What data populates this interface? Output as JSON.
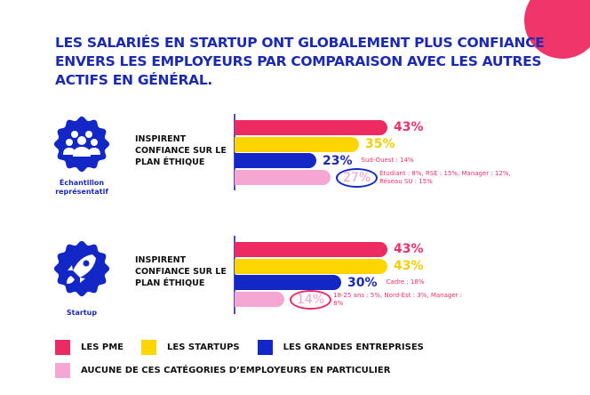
{
  "title": "LES SALARIÉS EN STARTUP ONT GLOBALEMENT PLUS CONFIANCE ENVERS LES EMPLOYEURS PAR COMPARAISON AVEC LES AUTRES ACTIFS EN GÉNÉRAL.",
  "colors": {
    "pme": "#EE2A62",
    "startups": "#FFD500",
    "grandes": "#1326C6",
    "aucune": "#F5A6D3",
    "brand": "#1B2AB0",
    "accent": "#F0356B"
  },
  "chart_data": [
    {
      "type": "bar",
      "orientation": "horizontal",
      "group_label": "Échantillon représentatif",
      "icon": "people-group-icon",
      "question": "INSPIRENT CONFIANCE SUR LE PLAN ÉTHIQUE",
      "categories": [
        "LES PME",
        "LES STARTUPS",
        "LES GRANDES ENTREPRISES",
        "AUCUNE DE CES CATÉGORIES D’EMPLOYEURS EN PARTICULIER"
      ],
      "values": [
        43,
        35,
        23,
        27
      ],
      "labels": [
        "43%",
        "35%",
        "23%",
        "27%"
      ],
      "annotations": [
        "",
        "",
        "Sud-Ouest : 14%",
        "Étudiant : 8%, RSE : 15%, Manager : 12%, Réseau SU : 15%"
      ],
      "circled_index": 3,
      "circle_color": "#1326C6"
    },
    {
      "type": "bar",
      "orientation": "horizontal",
      "group_label": "Startup",
      "icon": "rocket-icon",
      "question": "INSPIRENT CONFIANCE SUR LE PLAN ÉTHIQUE",
      "categories": [
        "LES PME",
        "LES STARTUPS",
        "LES GRANDES ENTREPRISES",
        "AUCUNE DE CES CATÉGORIES D’EMPLOYEURS EN PARTICULIER"
      ],
      "values": [
        43,
        43,
        30,
        14
      ],
      "labels": [
        "43%",
        "43%",
        "30%",
        "14%"
      ],
      "annotations": [
        "",
        "",
        "Cadre : 18%",
        "18-25 ans : 5%, Nord-Est : 3%, Manager : 8%"
      ],
      "circled_index": 3,
      "circle_color": "#EE2A62"
    }
  ],
  "legend": [
    "LES PME",
    "LES STARTUPS",
    "LES GRANDES ENTREPRISES",
    "AUCUNE DE CES CATÉGORIES D’EMPLOYEURS EN PARTICULIER"
  ]
}
